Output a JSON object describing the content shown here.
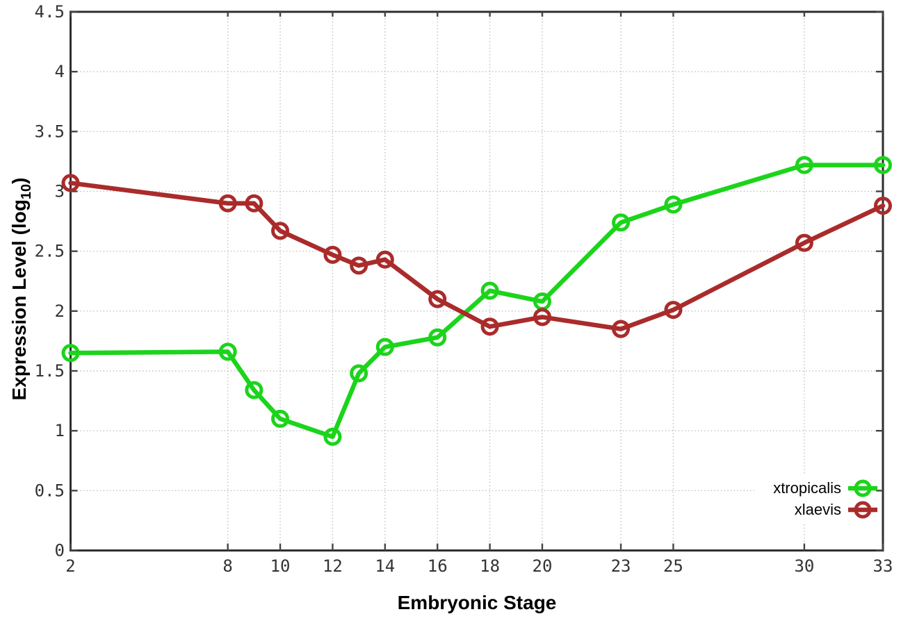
{
  "chart_data": {
    "type": "line",
    "xlabel": "Embryonic Stage",
    "ylabel": {
      "pre": "Expression Level (log",
      "sub": "10",
      "post": ")"
    },
    "x": [
      2,
      8,
      9,
      10,
      12,
      13,
      14,
      16,
      18,
      20,
      23,
      25,
      30,
      33
    ],
    "series": [
      {
        "name": "xtropicalis",
        "color": "#1bd41b",
        "values": [
          1.65,
          1.66,
          1.34,
          1.1,
          0.95,
          1.48,
          1.7,
          1.78,
          2.17,
          2.08,
          2.74,
          2.89,
          3.22,
          3.22
        ]
      },
      {
        "name": "xlaevis",
        "color": "#aa2b2b",
        "values": [
          3.07,
          2.9,
          2.9,
          2.67,
          2.47,
          2.38,
          2.43,
          2.1,
          1.87,
          1.95,
          1.85,
          2.01,
          2.57,
          2.88
        ]
      }
    ],
    "xlim": [
      2,
      33
    ],
    "ylim": [
      0,
      4.5
    ],
    "xticks": {
      "values": [
        2,
        8,
        10,
        12,
        14,
        16,
        18,
        20,
        23,
        25,
        30,
        33
      ],
      "labels": [
        "2",
        "8",
        "10",
        "12",
        "14",
        "16",
        "18",
        "20",
        "23",
        "25",
        "30",
        "33"
      ]
    },
    "yticks": {
      "values": [
        0,
        0.5,
        1,
        1.5,
        2,
        2.5,
        3,
        3.5,
        4,
        4.5
      ],
      "labels": [
        "0",
        "0.5",
        "1",
        "1.5",
        "2",
        "2.5",
        "3",
        "3.5",
        "4",
        "4.5"
      ]
    },
    "grid": true,
    "legend": {
      "position": "bottom-right",
      "entries": [
        "xtropicalis",
        "xlaevis"
      ]
    },
    "colors": {
      "background": "#ffffff",
      "border": "#2e2e2e",
      "grid": "#c0c0c0",
      "tick": "#444444",
      "tick_label": "#333333",
      "axis_title": "#000000",
      "legend_text": "#000000"
    }
  }
}
